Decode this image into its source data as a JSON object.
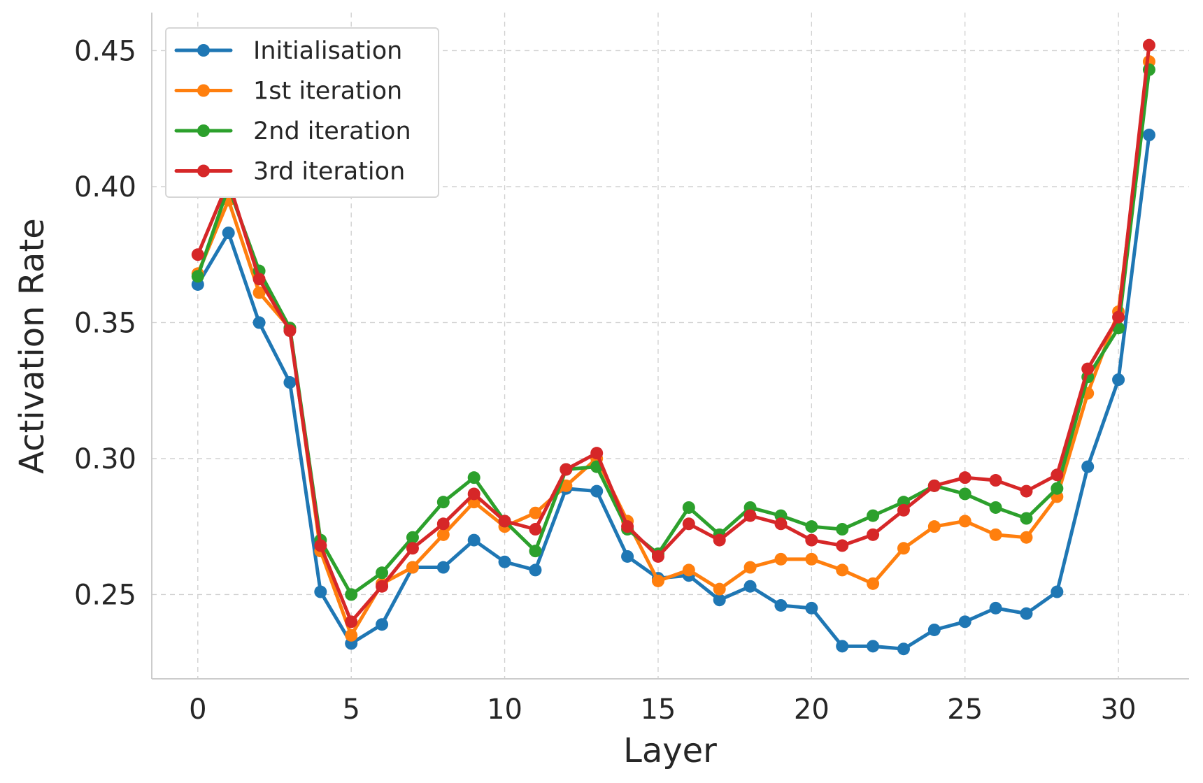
{
  "chart_data": {
    "type": "line",
    "title": "",
    "xlabel": "Layer",
    "ylabel": "Activation Rate",
    "xlim": [
      -1.5,
      32.3
    ],
    "ylim": [
      0.219,
      0.464
    ],
    "xticks": [
      0,
      5,
      10,
      15,
      20,
      25,
      30
    ],
    "xtick_labels": [
      "0",
      "5",
      "10",
      "15",
      "20",
      "25",
      "30"
    ],
    "yticks": [
      0.25,
      0.3,
      0.35,
      0.4,
      0.45
    ],
    "ytick_labels": [
      "0.25",
      "0.30",
      "0.35",
      "0.40",
      "0.45"
    ],
    "grid": true,
    "legend_position": "top-left",
    "x": [
      0,
      1,
      2,
      3,
      4,
      5,
      6,
      7,
      8,
      9,
      10,
      11,
      12,
      13,
      14,
      15,
      16,
      17,
      18,
      19,
      20,
      21,
      22,
      23,
      24,
      25,
      26,
      27,
      28,
      29,
      30,
      31
    ],
    "series": [
      {
        "name": "Initialisation",
        "color": "#1f77b4",
        "values": [
          0.364,
          0.383,
          0.35,
          0.328,
          0.251,
          0.232,
          0.239,
          0.26,
          0.26,
          0.27,
          0.262,
          0.259,
          0.289,
          0.288,
          0.264,
          0.256,
          0.257,
          0.248,
          0.253,
          0.246,
          0.245,
          0.231,
          0.231,
          0.23,
          0.237,
          0.24,
          0.245,
          0.243,
          0.251,
          0.297,
          0.329,
          0.419
        ]
      },
      {
        "name": "1st iteration",
        "color": "#ff7f0e",
        "values": [
          0.368,
          0.395,
          0.361,
          0.348,
          0.266,
          0.235,
          0.254,
          0.26,
          0.272,
          0.284,
          0.275,
          0.28,
          0.29,
          0.3,
          0.277,
          0.255,
          0.259,
          0.252,
          0.26,
          0.263,
          0.263,
          0.259,
          0.254,
          0.267,
          0.275,
          0.277,
          0.272,
          0.271,
          0.286,
          0.324,
          0.354,
          0.446
        ]
      },
      {
        "name": "2nd iteration",
        "color": "#2ca02c",
        "values": [
          0.367,
          0.4,
          0.369,
          0.348,
          0.27,
          0.25,
          0.258,
          0.271,
          0.284,
          0.293,
          0.277,
          0.266,
          0.296,
          0.297,
          0.274,
          0.265,
          0.282,
          0.272,
          0.282,
          0.279,
          0.275,
          0.274,
          0.279,
          0.284,
          0.29,
          0.287,
          0.282,
          0.278,
          0.289,
          0.33,
          0.348,
          0.443
        ]
      },
      {
        "name": "3rd iteration",
        "color": "#d62728",
        "values": [
          0.375,
          0.402,
          0.366,
          0.347,
          0.268,
          0.24,
          0.253,
          0.267,
          0.276,
          0.287,
          0.277,
          0.274,
          0.296,
          0.302,
          0.275,
          0.264,
          0.276,
          0.27,
          0.279,
          0.276,
          0.27,
          0.268,
          0.272,
          0.281,
          0.29,
          0.293,
          0.292,
          0.288,
          0.294,
          0.333,
          0.352,
          0.452
        ]
      }
    ]
  }
}
